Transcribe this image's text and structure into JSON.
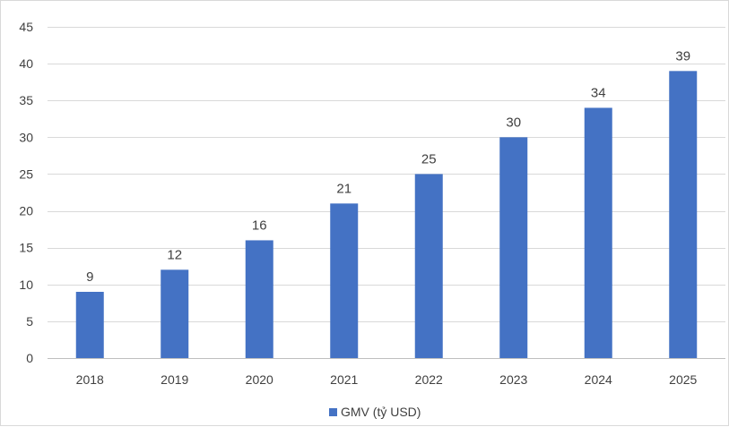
{
  "chart_data": {
    "type": "bar",
    "categories": [
      "2018",
      "2019",
      "2020",
      "2021",
      "2022",
      "2023",
      "2024",
      "2025"
    ],
    "series": [
      {
        "name": "GMV (tỷ USD)",
        "values": [
          9,
          12,
          16,
          21,
          25,
          30,
          34,
          39
        ],
        "color": "#4472C4"
      }
    ],
    "ylim": [
      0,
      45
    ],
    "yticks": [
      0,
      5,
      10,
      15,
      20,
      25,
      30,
      35,
      40,
      45
    ],
    "grid": true,
    "data_labels": true,
    "legend": {
      "position": "bottom"
    },
    "title": "",
    "xlabel": "",
    "ylabel": ""
  },
  "colors": {
    "bar": "#4472C4",
    "grid": "#d9d9d9",
    "axis": "#bfbfbf",
    "text": "#404040"
  }
}
